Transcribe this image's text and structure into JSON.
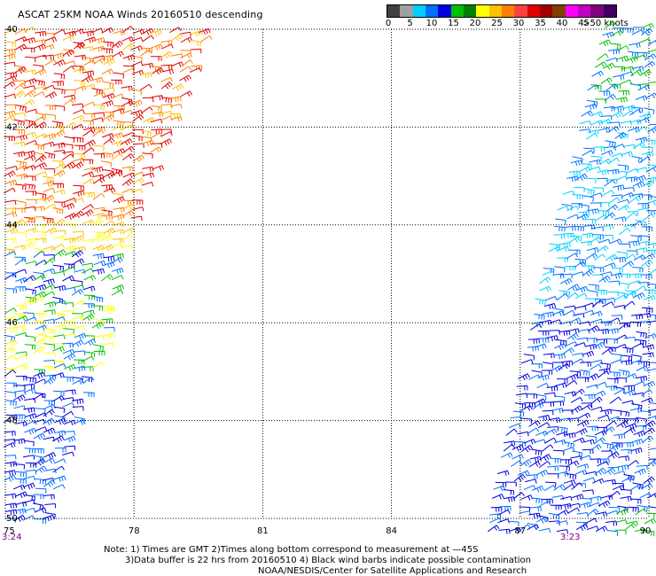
{
  "title": "ASCAT 25KM NOAA Winds 20160510 descending",
  "colorbar": {
    "colors": [
      "#404040",
      "#a0a0a0",
      "#00d0ff",
      "#0070ff",
      "#0000e0",
      "#00c000",
      "#008000",
      "#ffff00",
      "#ffc000",
      "#ff8000",
      "#ff4040",
      "#e00000",
      "#a00000",
      "#804000",
      "#ff00ff",
      "#c000c0",
      "#800080",
      "#400060"
    ],
    "labels": [
      "0",
      "5",
      "10",
      "15",
      "20",
      "25",
      "30",
      "35",
      "40",
      "45",
      "50 knots"
    ],
    "label_prefix_last": ">"
  },
  "axes": {
    "lon_labels": [
      "75",
      "78",
      "81",
      "84",
      "87",
      "90"
    ],
    "lat_labels": [
      "40",
      "42",
      "44",
      "46",
      "48",
      "50"
    ]
  },
  "swath_times": {
    "left": "3:24",
    "right": "3:23"
  },
  "time_color": "#800080",
  "notes": {
    "line1": "Note: 1) Times are GMT 2)Times along bottom correspond to measurement at —45S",
    "line2": "3)Data buffer is 22 hrs from 20160510 4) Black wind barbs indicate possible contamination",
    "line3": "NOAA/NESDIS/Center for Satellite Applications and Research"
  }
}
